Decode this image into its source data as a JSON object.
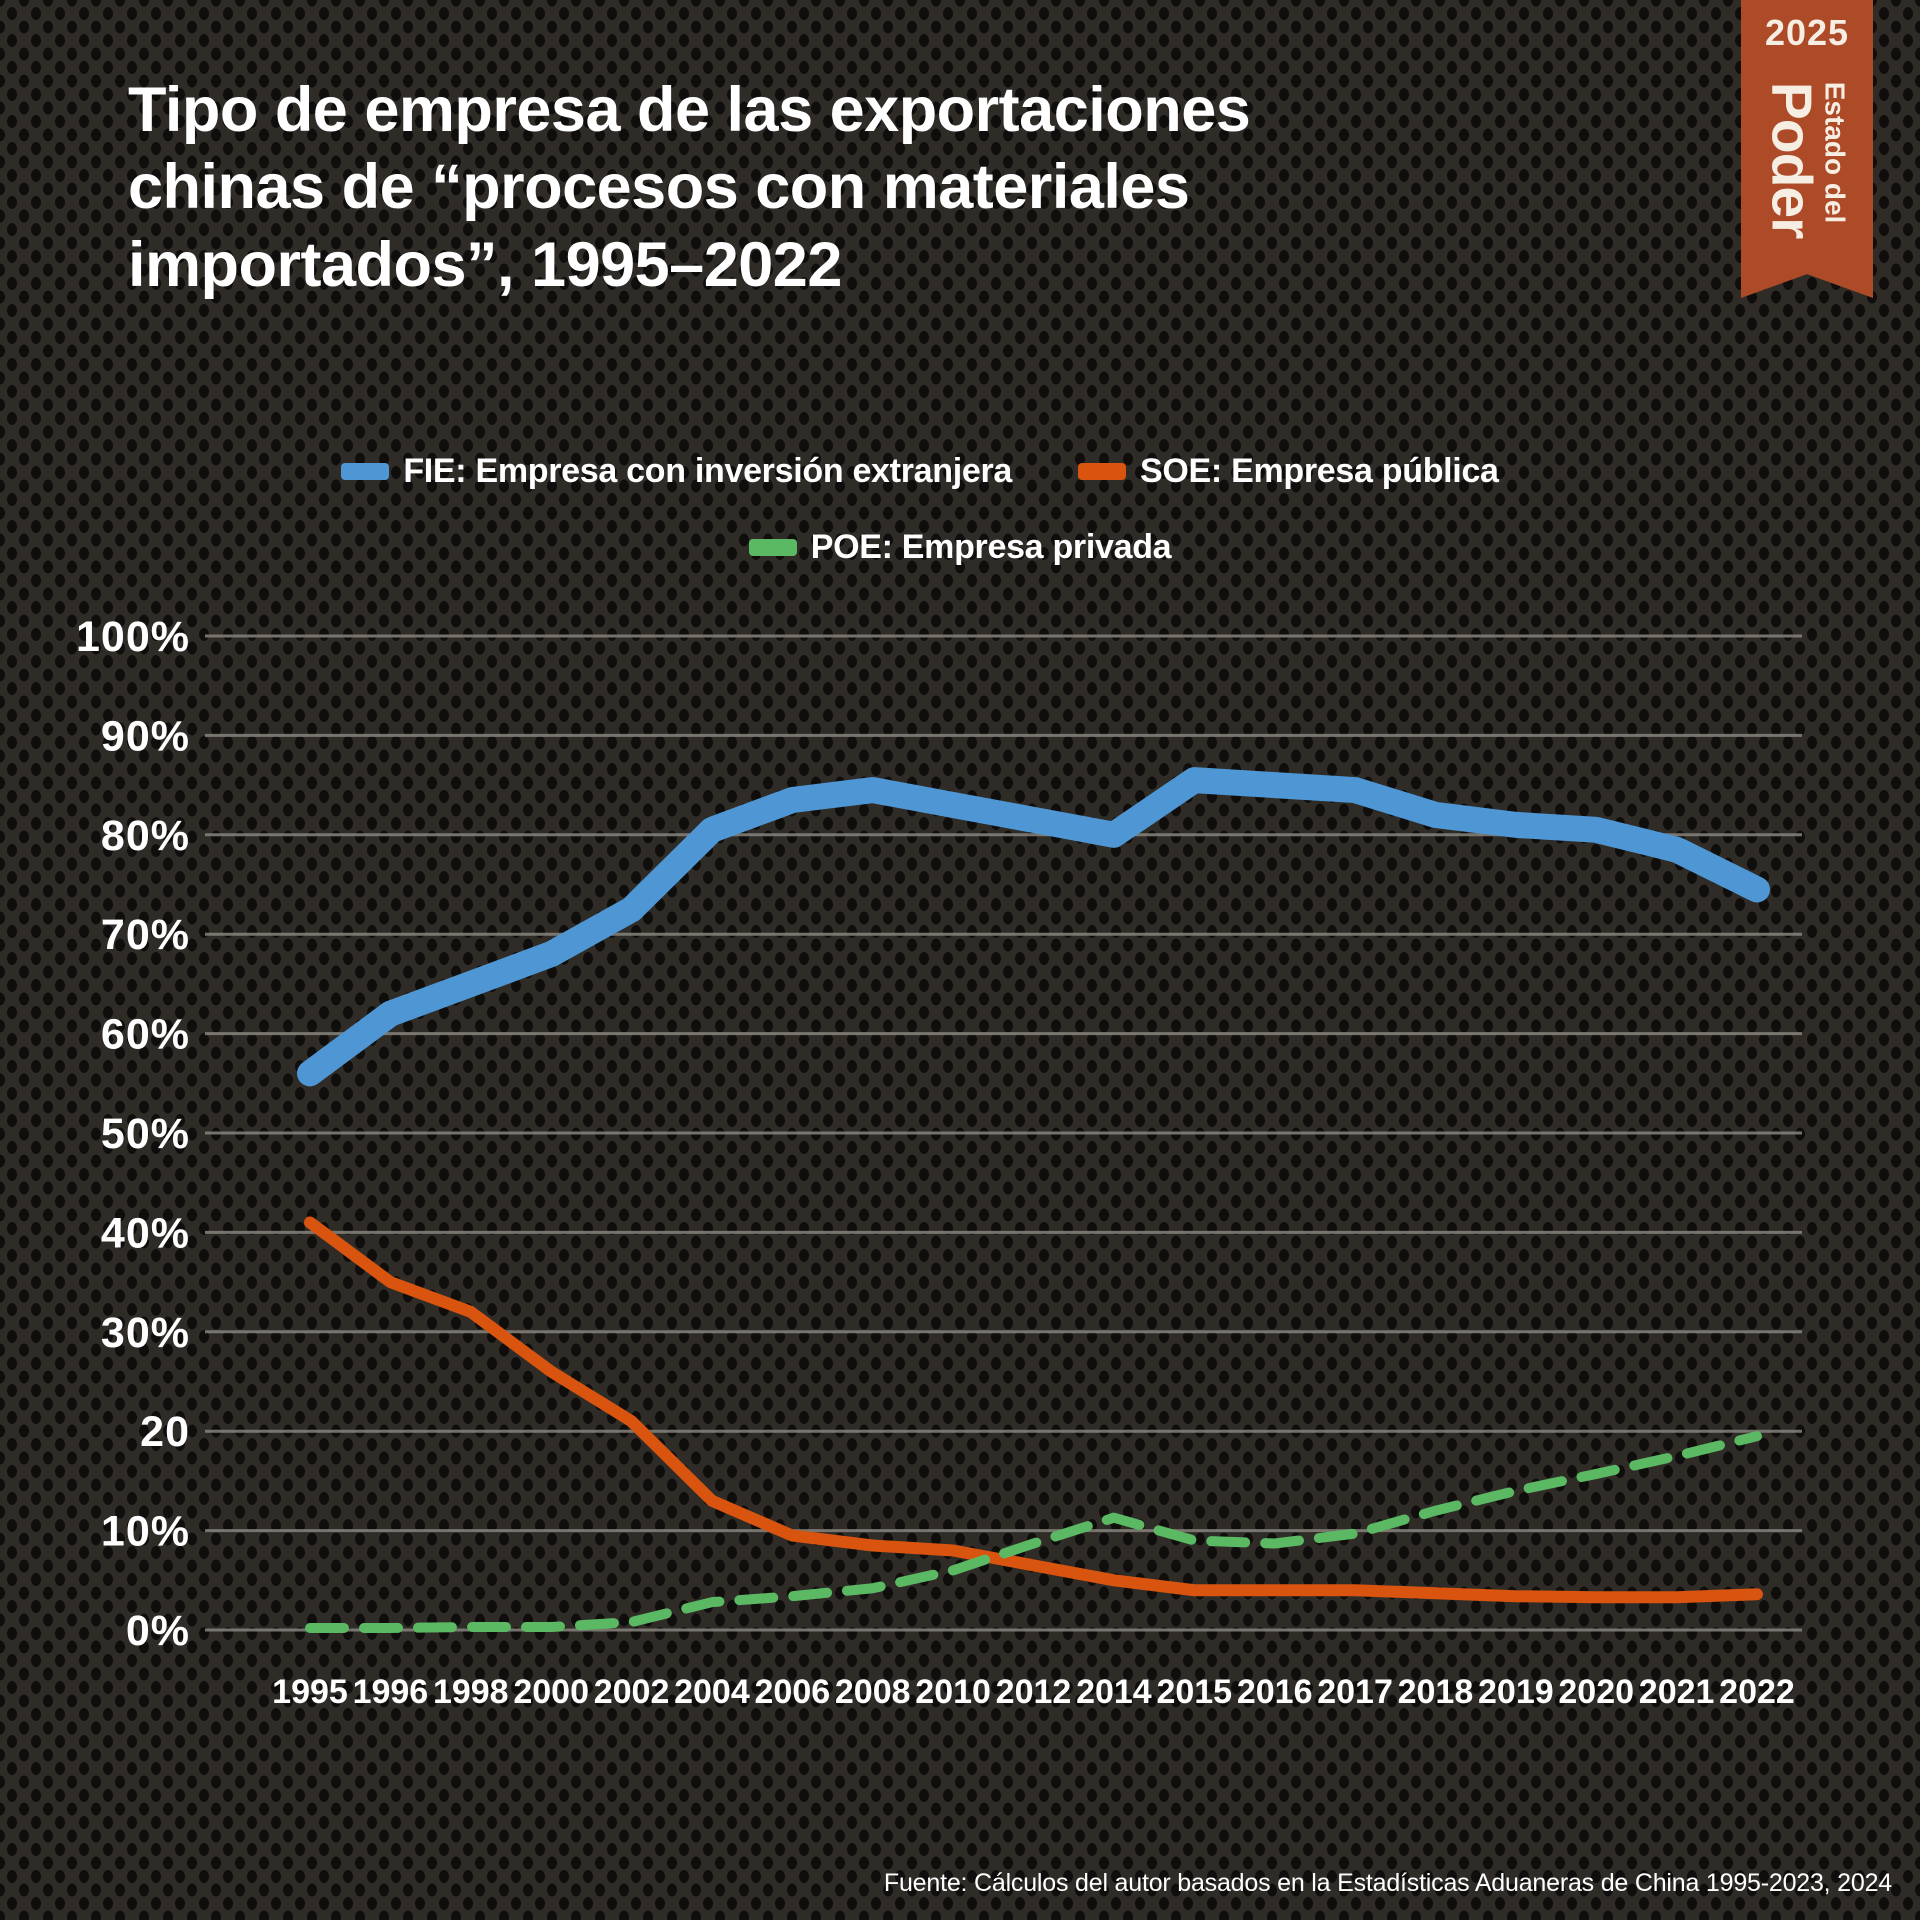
{
  "title": "Tipo de empresa de las exportaciones\nchinas de “procesos con materiales\nimportados”, 1995–2022",
  "badge": {
    "year": "2025",
    "line1": "Estado del",
    "line2": "Poder",
    "bg_color": "#ad4a28"
  },
  "legend": [
    {
      "id": "fie",
      "label": "FIE: Empresa con inversión extranjera",
      "color": "#4e97d4"
    },
    {
      "id": "soe",
      "label": "SOE: Empresa pública",
      "color": "#d9540f"
    },
    {
      "id": "poe",
      "label": "POE: Empresa privada",
      "color": "#5bb964"
    }
  ],
  "source": "Fuente: Cálculos del autor basados en la Estadísticas Aduaneras de China 1995-2023, 2024",
  "chart_data": {
    "type": "line",
    "title": "Tipo de empresa de las exportaciones chinas de “procesos con materiales importados”, 1995–2022",
    "categories": [
      "1995",
      "1996",
      "1998",
      "2000",
      "2002",
      "2004",
      "2006",
      "2008",
      "2010",
      "2012",
      "2014",
      "2015",
      "2016",
      "2017",
      "2018",
      "2019",
      "2020",
      "2021",
      "2022"
    ],
    "series": [
      {
        "id": "fie",
        "name": "FIE: Empresa con inversión extranjera",
        "color": "#4e97d4",
        "style": "solid",
        "width": 26,
        "z": 3,
        "values": [
          56,
          62,
          65,
          68,
          72.5,
          80.5,
          83.5,
          84.5,
          83,
          81.5,
          80,
          85.5,
          85,
          84.5,
          82,
          81,
          80.5,
          78.5,
          74.5
        ]
      },
      {
        "id": "soe",
        "name": "SOE: Empresa pública",
        "color": "#d9540f",
        "style": "solid",
        "width": 12,
        "z": 1,
        "values": [
          41,
          35,
          32,
          26,
          21,
          13,
          9.5,
          8.5,
          8,
          6.5,
          5,
          4,
          4,
          4,
          3.7,
          3.4,
          3.3,
          3.3,
          3.6
        ]
      },
      {
        "id": "poe",
        "name": "POE: Empresa privada",
        "color": "#5bb964",
        "style": "dashed",
        "width": 10,
        "z": 2,
        "values": [
          0.2,
          0.2,
          0.3,
          0.3,
          0.8,
          2.8,
          3.4,
          4.2,
          6,
          8.7,
          11.3,
          9,
          8.7,
          9.7,
          12,
          14,
          15.7,
          17.5,
          19.5
        ]
      }
    ],
    "yticks": [
      {
        "label": "100%",
        "value": 100
      },
      {
        "label": "90%",
        "value": 90
      },
      {
        "label": "80%",
        "value": 80
      },
      {
        "label": "70%",
        "value": 70
      },
      {
        "label": "60%",
        "value": 60
      },
      {
        "label": "50%",
        "value": 50
      },
      {
        "label": "40%",
        "value": 40
      },
      {
        "label": "30%",
        "value": 30
      },
      {
        "label": "20",
        "value": 20
      },
      {
        "label": "10%",
        "value": 10
      },
      {
        "label": "0%",
        "value": 0
      }
    ],
    "ylim": [
      0,
      100
    ],
    "xlabel": "",
    "ylabel": "",
    "grid": true,
    "legend_position": "top"
  }
}
